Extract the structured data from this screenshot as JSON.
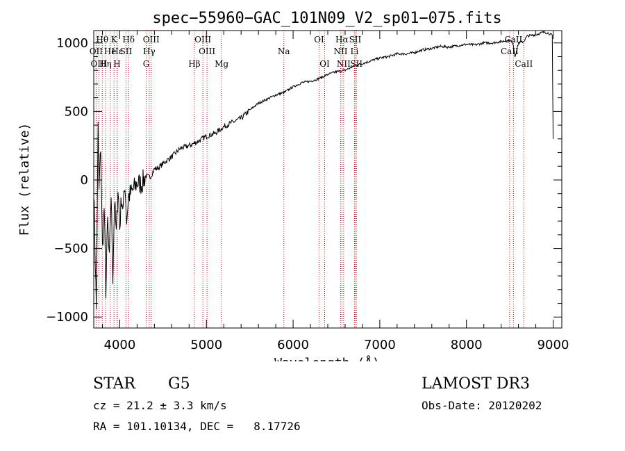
{
  "chart_data": {
    "type": "line",
    "title": "spec−55960−GAC_101N09_V2_sp01−075.fits",
    "xlabel": "Wavelength (Å)",
    "ylabel": "Flux (relative)",
    "xlim": [
      3700,
      9100
    ],
    "ylim": [
      -1080,
      1090
    ],
    "x_ticks": [
      4000,
      5000,
      6000,
      7000,
      8000,
      9000
    ],
    "x_tick_labels": [
      "4000",
      "5000",
      "6000",
      "7000",
      "8000",
      "9000"
    ],
    "y_ticks": [
      -1000,
      -500,
      0,
      500,
      1000
    ],
    "y_tick_labels": [
      "−1000",
      "−500",
      "0",
      "500",
      "1000"
    ],
    "series": [
      {
        "name": "flux",
        "x": [
          3700,
          3730,
          3750,
          3760,
          3780,
          3800,
          3820,
          3840,
          3860,
          3880,
          3900,
          3920,
          3940,
          3960,
          3980,
          4000,
          4020,
          4040,
          4060,
          4080,
          4100,
          4150,
          4200,
          4250,
          4300,
          4350,
          4400,
          4450,
          4500,
          4600,
          4700,
          4800,
          4900,
          5000,
          5100,
          5200,
          5300,
          5400,
          5500,
          5600,
          5700,
          5800,
          5900,
          6000,
          6100,
          6200,
          6300,
          6400,
          6500,
          6600,
          6700,
          6800,
          6900,
          7000,
          7100,
          7200,
          7300,
          7400,
          7500,
          7600,
          7700,
          7800,
          7900,
          8000,
          8100,
          8200,
          8300,
          8400,
          8500,
          8540,
          8560,
          8600,
          8660,
          8700,
          8800,
          8900,
          8950,
          8980,
          8990,
          9000
        ],
        "y": [
          -50,
          -950,
          380,
          -100,
          250,
          -500,
          -200,
          -800,
          -300,
          -600,
          -100,
          -700,
          -150,
          -400,
          -50,
          -350,
          -120,
          -220,
          -20,
          -300,
          -120,
          -80,
          -20,
          -30,
          30,
          20,
          80,
          90,
          120,
          170,
          230,
          250,
          280,
          320,
          340,
          390,
          420,
          450,
          510,
          560,
          590,
          620,
          640,
          680,
          710,
          720,
          740,
          770,
          790,
          800,
          830,
          850,
          870,
          890,
          900,
          920,
          920,
          930,
          950,
          960,
          975,
          970,
          980,
          990,
          985,
          1000,
          1000,
          1010,
          1020,
          990,
          900,
          1000,
          1010,
          1050,
          1060,
          1080,
          1070,
          1060,
          1050,
          300
        ]
      }
    ],
    "spectral_lines": [
      {
        "name": "Hθ",
        "wavelength": 3798,
        "row": 1
      },
      {
        "name": "K",
        "wavelength": 3934,
        "row": 1
      },
      {
        "name": "Hδ",
        "wavelength": 4102,
        "row": 1
      },
      {
        "name": "OIII",
        "wavelength": 4363,
        "row": 1
      },
      {
        "name": "OIII",
        "wavelength": 4959,
        "row": 1
      },
      {
        "name": "OI",
        "wavelength": 6300,
        "row": 1
      },
      {
        "name": "Hα",
        "wavelength": 6563,
        "row": 1
      },
      {
        "name": "SII",
        "wavelength": 6716,
        "row": 1
      },
      {
        "name": "CaII",
        "wavelength": 8542,
        "row": 1
      },
      {
        "name": "OII",
        "wavelength": 3727,
        "row": 2
      },
      {
        "name": "He",
        "wavelength": 3889,
        "row": 2
      },
      {
        "name": "Hε",
        "wavelength": 3970,
        "row": 2
      },
      {
        "name": "SII",
        "wavelength": 4072,
        "row": 2
      },
      {
        "name": "Hγ",
        "wavelength": 4340,
        "row": 2
      },
      {
        "name": "OIII",
        "wavelength": 5007,
        "row": 2
      },
      {
        "name": "Na",
        "wavelength": 5893,
        "row": 2
      },
      {
        "name": "NII",
        "wavelength": 6548,
        "row": 2
      },
      {
        "name": "Li",
        "wavelength": 6708,
        "row": 2
      },
      {
        "name": "CaII",
        "wavelength": 8498,
        "row": 2
      },
      {
        "name": "OIII",
        "wavelength": 3760,
        "row": 3
      },
      {
        "name": "Hη",
        "wavelength": 3835,
        "row": 3
      },
      {
        "name": "H",
        "wavelength": 3968,
        "row": 3
      },
      {
        "name": "G",
        "wavelength": 4305,
        "row": 3
      },
      {
        "name": "Hβ",
        "wavelength": 4861,
        "row": 3
      },
      {
        "name": "Mg",
        "wavelength": 5175,
        "row": 3
      },
      {
        "name": "OI",
        "wavelength": 6364,
        "row": 3
      },
      {
        "name": "NII",
        "wavelength": 6583,
        "row": 3
      },
      {
        "name": "SII",
        "wavelength": 6731,
        "row": 3
      },
      {
        "name": "CaII",
        "wavelength": 8662,
        "row": 3
      }
    ]
  },
  "footer": {
    "object_class": "STAR",
    "subclass": "G5",
    "redshift": "cz = 21.2 ± 3.3 km/s",
    "coords": "RA = 101.10134, DEC =   8.17726",
    "survey": "LAMOST DR3",
    "obs_date": "Obs-Date: 20120202"
  }
}
